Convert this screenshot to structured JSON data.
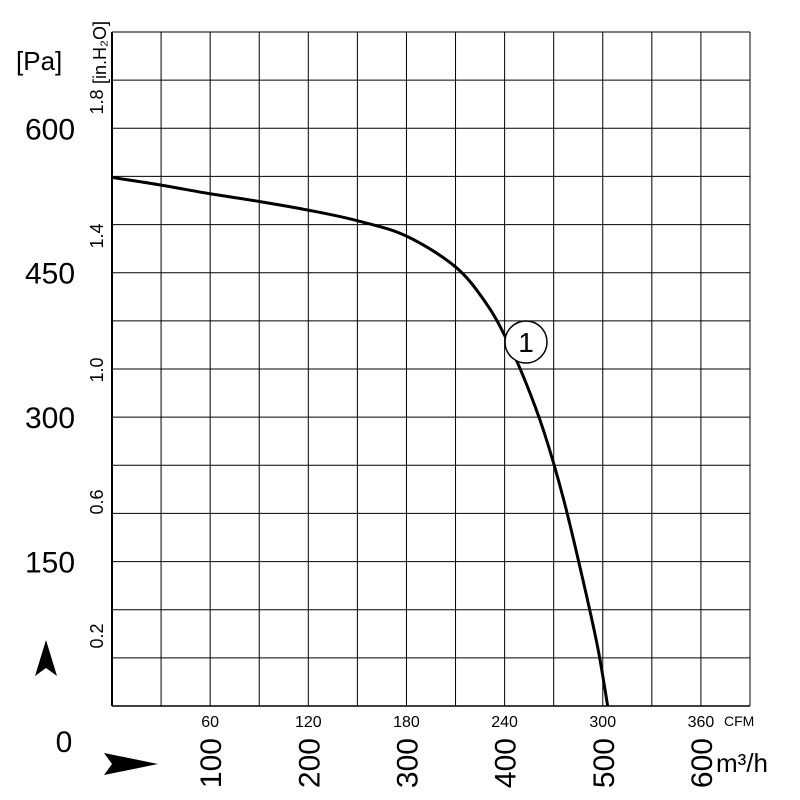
{
  "chart_data": {
    "type": "line",
    "x_unit": "m³/h",
    "y_unit": "Pa",
    "xlim": [
      0,
      650
    ],
    "ylim": [
      0,
      700
    ],
    "x_secondary_unit": "CFM",
    "y_secondary_unit": "[in.H₂O]",
    "y_ticks": [
      0,
      150,
      300,
      450,
      600
    ],
    "y_secondary_ticks": [
      "0.2",
      "0.6",
      "1.0",
      "1.4",
      "1.8"
    ],
    "x_top_ticks": [
      "60",
      "120",
      "180",
      "240",
      "300",
      "360"
    ],
    "x_bottom_ticks": [
      "100",
      "200",
      "300",
      "400",
      "500",
      "600"
    ],
    "grid": true,
    "series": [
      {
        "name": "1",
        "points": [
          {
            "x": 0,
            "y": 549
          },
          {
            "x": 50,
            "y": 541
          },
          {
            "x": 100,
            "y": 532
          },
          {
            "x": 150,
            "y": 524
          },
          {
            "x": 200,
            "y": 515
          },
          {
            "x": 250,
            "y": 504
          },
          {
            "x": 300,
            "y": 488
          },
          {
            "x": 350,
            "y": 456
          },
          {
            "x": 380,
            "y": 420
          },
          {
            "x": 400,
            "y": 385
          },
          {
            "x": 420,
            "y": 340
          },
          {
            "x": 440,
            "y": 285
          },
          {
            "x": 460,
            "y": 215
          },
          {
            "x": 480,
            "y": 130
          },
          {
            "x": 495,
            "y": 60
          },
          {
            "x": 505,
            "y": 0
          }
        ]
      }
    ]
  },
  "labels": {
    "pa_unit": "[Pa]",
    "inh2o_unit": "[in.H₂O]",
    "cfm_unit": "CFM",
    "m3h_unit": "m³/h",
    "curve_marker": "1"
  }
}
